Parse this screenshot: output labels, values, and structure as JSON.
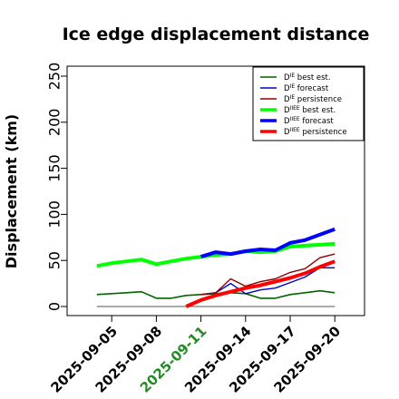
{
  "chart_data": {
    "type": "line",
    "title": "Ice edge displacement distance",
    "xlabel": "",
    "ylabel": "Displacement (km)",
    "ylim": [
      0,
      260
    ],
    "yticks": [
      0,
      50,
      100,
      150,
      200,
      250
    ],
    "x_tick_labels": [
      {
        "label": "2025-09-05",
        "day": 5,
        "color": "#000000"
      },
      {
        "label": "2025-09-08",
        "day": 8,
        "color": "#000000"
      },
      {
        "label": "2025-09-11",
        "day": 11,
        "color": "#228B22"
      },
      {
        "label": "2025-09-14",
        "day": 14,
        "color": "#000000"
      },
      {
        "label": "2025-09-17",
        "day": 17,
        "color": "#000000"
      },
      {
        "label": "2025-09-20",
        "day": 20,
        "color": "#000000"
      }
    ],
    "xlim": [
      "2025-09-02",
      "2025-09-22"
    ],
    "legend_position": "top-right",
    "grid": false,
    "series": [
      {
        "name": "D^IE best est.",
        "legend_main": "D",
        "legend_sup": "IE",
        "legend_rest": " best est.",
        "color": "#006400",
        "width": 1.6,
        "x": [
          "2025-09-04",
          "2025-09-05",
          "2025-09-06",
          "2025-09-07",
          "2025-09-08",
          "2025-09-09",
          "2025-09-10",
          "2025-09-11",
          "2025-09-12",
          "2025-09-13",
          "2025-09-14",
          "2025-09-15",
          "2025-09-16",
          "2025-09-17",
          "2025-09-18",
          "2025-09-19",
          "2025-09-20"
        ],
        "y": [
          13,
          14,
          15,
          16,
          9,
          9,
          12,
          13,
          14,
          15,
          14,
          9,
          9,
          13,
          15,
          17,
          15
        ]
      },
      {
        "name": "D^IE forecast",
        "legend_main": "D",
        "legend_sup": "IE",
        "legend_rest": " forecast",
        "color": "#0000cd",
        "width": 1.4,
        "x": [
          "2025-09-11",
          "2025-09-12",
          "2025-09-13",
          "2025-09-14",
          "2025-09-15",
          "2025-09-16",
          "2025-09-17",
          "2025-09-18",
          "2025-09-19",
          "2025-09-20"
        ],
        "y": [
          13,
          15,
          25,
          14,
          18,
          20,
          26,
          32,
          42,
          42
        ]
      },
      {
        "name": "D^IE persistence",
        "legend_main": "D",
        "legend_sup": "IE",
        "legend_rest": " persistence",
        "color": "#8b0000",
        "width": 1.4,
        "x": [
          "2025-09-11",
          "2025-09-12",
          "2025-09-13",
          "2025-09-14",
          "2025-09-15",
          "2025-09-16",
          "2025-09-17",
          "2025-09-18",
          "2025-09-19",
          "2025-09-20"
        ],
        "y": [
          13,
          15,
          30,
          22,
          27,
          30,
          37,
          41,
          53,
          57
        ]
      },
      {
        "name": "D^IIEE best est.",
        "legend_main": "D",
        "legend_sup": "IIEE",
        "legend_rest": " best est.",
        "color": "#00ff00",
        "width": 4,
        "x": [
          "2025-09-04",
          "2025-09-05",
          "2025-09-06",
          "2025-09-07",
          "2025-09-08",
          "2025-09-09",
          "2025-09-10",
          "2025-09-11",
          "2025-09-12",
          "2025-09-13",
          "2025-09-14",
          "2025-09-15",
          "2025-09-16",
          "2025-09-17",
          "2025-09-18",
          "2025-09-19",
          "2025-09-20"
        ],
        "y": [
          44,
          47,
          49,
          51,
          46,
          49,
          52,
          54,
          56,
          57,
          60,
          59,
          60,
          65,
          66,
          67,
          68
        ]
      },
      {
        "name": "D^IIEE forecast",
        "legend_main": "D",
        "legend_sup": "IIEE",
        "legend_rest": " forecast",
        "color": "#0000ff",
        "width": 4,
        "x": [
          "2025-09-11",
          "2025-09-12",
          "2025-09-13",
          "2025-09-14",
          "2025-09-15",
          "2025-09-16",
          "2025-09-17",
          "2025-09-18",
          "2025-09-19",
          "2025-09-20"
        ],
        "y": [
          54,
          59,
          57,
          60,
          62,
          61,
          69,
          72,
          78,
          84
        ]
      },
      {
        "name": "D^IIEE persistence",
        "legend_main": "D",
        "legend_sup": "IIEE",
        "legend_rest": " persistence",
        "color": "#ff0000",
        "width": 4,
        "x": [
          "2025-09-10",
          "2025-09-11",
          "2025-09-12",
          "2025-09-13",
          "2025-09-14",
          "2025-09-15",
          "2025-09-16",
          "2025-09-17",
          "2025-09-18",
          "2025-09-19",
          "2025-09-20"
        ],
        "y": [
          0,
          7,
          12,
          16,
          20,
          23,
          27,
          31,
          36,
          43,
          49
        ]
      }
    ]
  }
}
